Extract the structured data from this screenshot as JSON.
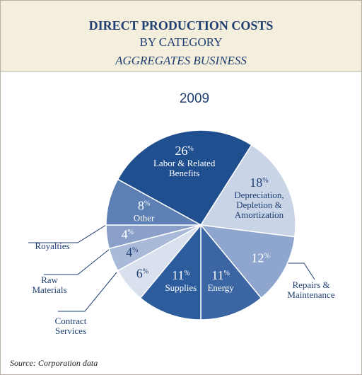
{
  "header": {
    "title": "DIRECT PRODUCTION COSTS",
    "subtitle": "BY CATEGORY",
    "business": "AGGREGATES BUSINESS"
  },
  "chart_data": {
    "type": "pie",
    "title": "2009",
    "categories": [
      "Labor & Related\nBenefits",
      "Depreciation,\nDepletion &\nAmortization",
      "Repairs &\nMaintenance",
      "Energy",
      "Supplies",
      "Contract\nServices",
      "Raw\nMaterials",
      "Royalties",
      "Other"
    ],
    "values": [
      26,
      18,
      12,
      11,
      11,
      6,
      4,
      4,
      8
    ],
    "value_labels": [
      "26%",
      "18%",
      "12%",
      "11%",
      "11%",
      "6%",
      "4%",
      "4%",
      "8%"
    ],
    "colors": [
      "#1f4f8e",
      "#c9d4e7",
      "#8ea5cd",
      "#3b66a3",
      "#2c5c9b",
      "#d9e1ef",
      "#a9bad9",
      "#8ba0c8",
      "#5c7fb4"
    ]
  },
  "source": "Source: Corporation data"
}
